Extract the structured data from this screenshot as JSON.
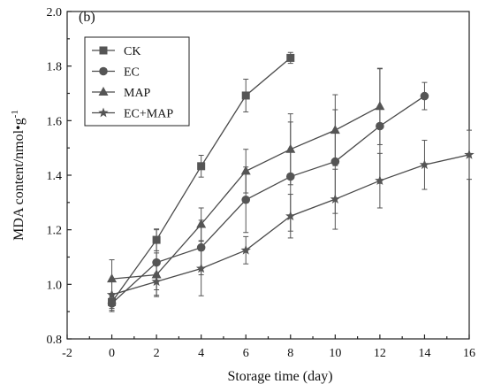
{
  "chart_data": {
    "type": "line",
    "panel_label": "(b)",
    "xlabel": "Storage time (day)",
    "ylabel": "MDA content/nmol•g",
    "ylabel_superscript": "-1",
    "xlim": [
      -2,
      16
    ],
    "ylim": [
      0.8,
      2.0
    ],
    "xticks": [
      "-2",
      "0",
      "2",
      "4",
      "6",
      "8",
      "10",
      "12",
      "14",
      "16"
    ],
    "yticks": [
      "0.8",
      "1.0",
      "1.2",
      "1.4",
      "1.6",
      "1.8",
      "2.0"
    ],
    "grid": false,
    "legend_position": "top-left",
    "series": [
      {
        "name": "CK",
        "marker": "square",
        "x": [
          0,
          2,
          4,
          6,
          8
        ],
        "values": [
          0.935,
          1.163,
          1.433,
          1.692,
          1.83
        ],
        "errors": [
          0.03,
          0.04,
          0.04,
          0.06,
          0.02
        ]
      },
      {
        "name": "EC",
        "marker": "circle",
        "x": [
          0,
          2,
          4,
          6,
          8,
          10,
          12,
          14
        ],
        "values": [
          0.93,
          1.08,
          1.135,
          1.31,
          1.395,
          1.45,
          1.58,
          1.69
        ],
        "errors": [
          0.03,
          0.12,
          0.1,
          0.12,
          0.2,
          0.19,
          0.21,
          0.05
        ]
      },
      {
        "name": "MAP",
        "marker": "triangle",
        "x": [
          0,
          2,
          4,
          6,
          8,
          10,
          12
        ],
        "values": [
          1.02,
          1.035,
          1.22,
          1.415,
          1.495,
          1.565,
          1.652
        ],
        "errors": [
          0.07,
          0.08,
          0.06,
          0.08,
          0.13,
          0.13,
          0.14
        ]
      },
      {
        "name": "EC+MAP",
        "marker": "star",
        "x": [
          0,
          2,
          4,
          6,
          8,
          10,
          12,
          14,
          16
        ],
        "values": [
          0.962,
          1.01,
          1.058,
          1.125,
          1.25,
          1.312,
          1.38,
          1.438,
          1.475
        ],
        "errors": [
          0.05,
          0.03,
          0.1,
          0.05,
          0.08,
          0.11,
          0.1,
          0.09,
          0.09
        ]
      }
    ]
  }
}
